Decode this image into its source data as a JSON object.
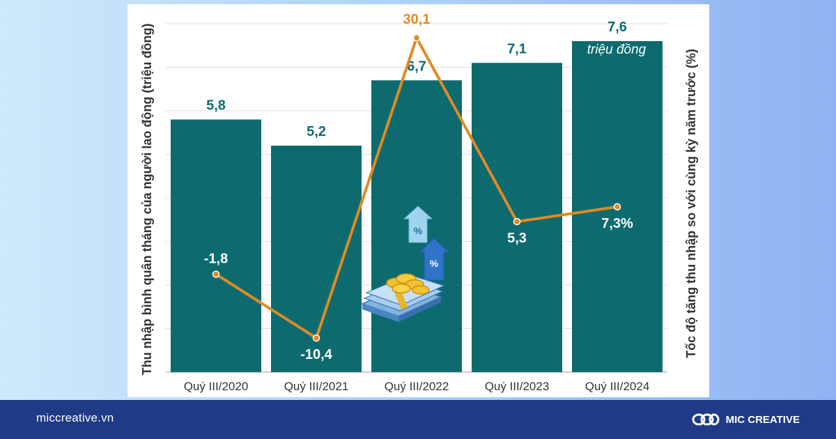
{
  "chart_data": {
    "type": "bar",
    "categories": [
      "Quý III/2020",
      "Quý III/2021",
      "Quý III/2022",
      "Quý III/2023",
      "Quý III/2024"
    ],
    "series": [
      {
        "values": [
          5.8,
          5.2,
          6.7,
          7.1,
          7.6
        ],
        "labels": [
          "5,8",
          "5,2",
          "6,7",
          "7,1",
          "7,6"
        ],
        "color": "#0d6b6f"
      },
      {
        "values": [
          -1.8,
          -10.4,
          30.1,
          5.3,
          7.3
        ],
        "labels": [
          "-1,8",
          "-10,4",
          "30,1",
          "5,3",
          "7,3%"
        ],
        "color": "#e08a25",
        "chart_type": "line"
      }
    ],
    "ylabel": "Thu nhập bình quân tháng của người lao động (triệu đồng)",
    "y2label": "Tốc độ tăng thu nhập so với cùng kỳ năm trước (%)",
    "unit_note": "triệu đồng",
    "ylim": [
      0,
      8
    ],
    "y2lim": [
      -15,
      32
    ],
    "grid": true
  },
  "decoration": {
    "icon": "money-stack-with-percent-arrows-icon",
    "percent_symbol": "%"
  },
  "footer": {
    "site": "miccreative.vn",
    "brand": "MIC CREATIVE"
  },
  "colors": {
    "bar": "#0d6b6f",
    "line": "#e08a25",
    "footer": "#1f3a86"
  }
}
